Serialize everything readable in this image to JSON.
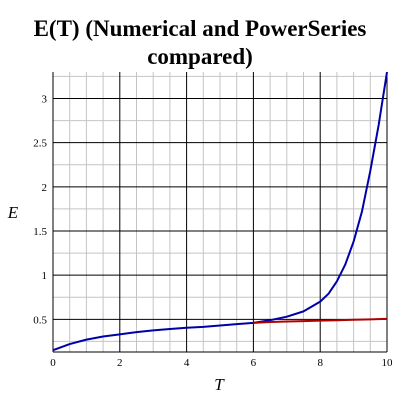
{
  "chart_data": {
    "type": "line",
    "title_lines": [
      "E(T) (Numerical and PowerSeries",
      "compared)"
    ],
    "xlabel": "T",
    "ylabel": "E",
    "xlim": [
      0,
      10
    ],
    "ylim": [
      0.13,
      3.3
    ],
    "x_ticks": [
      0,
      2,
      4,
      6,
      8,
      10
    ],
    "y_ticks": [
      0.5,
      1,
      1.5,
      2,
      2.5,
      3
    ],
    "grid": true,
    "series": [
      {
        "color": "#0000aa",
        "x": [
          0,
          0.5,
          1,
          1.5,
          2,
          2.5,
          3,
          3.5,
          4,
          4.5,
          5,
          5.5,
          6,
          6.5,
          7,
          7.5,
          8,
          8.25,
          8.5,
          8.75,
          9,
          9.25,
          9.5,
          9.75,
          10
        ],
        "y": [
          0.15,
          0.22,
          0.27,
          0.305,
          0.33,
          0.355,
          0.375,
          0.39,
          0.405,
          0.415,
          0.43,
          0.445,
          0.46,
          0.49,
          0.53,
          0.59,
          0.7,
          0.79,
          0.93,
          1.12,
          1.38,
          1.72,
          2.18,
          2.7,
          3.3
        ]
      },
      {
        "color": "#b00000",
        "x": [
          6,
          6.5,
          7,
          7.5,
          8,
          8.5,
          9,
          9.5,
          10
        ],
        "y": [
          0.46,
          0.47,
          0.475,
          0.48,
          0.485,
          0.49,
          0.495,
          0.5,
          0.505
        ]
      }
    ]
  }
}
